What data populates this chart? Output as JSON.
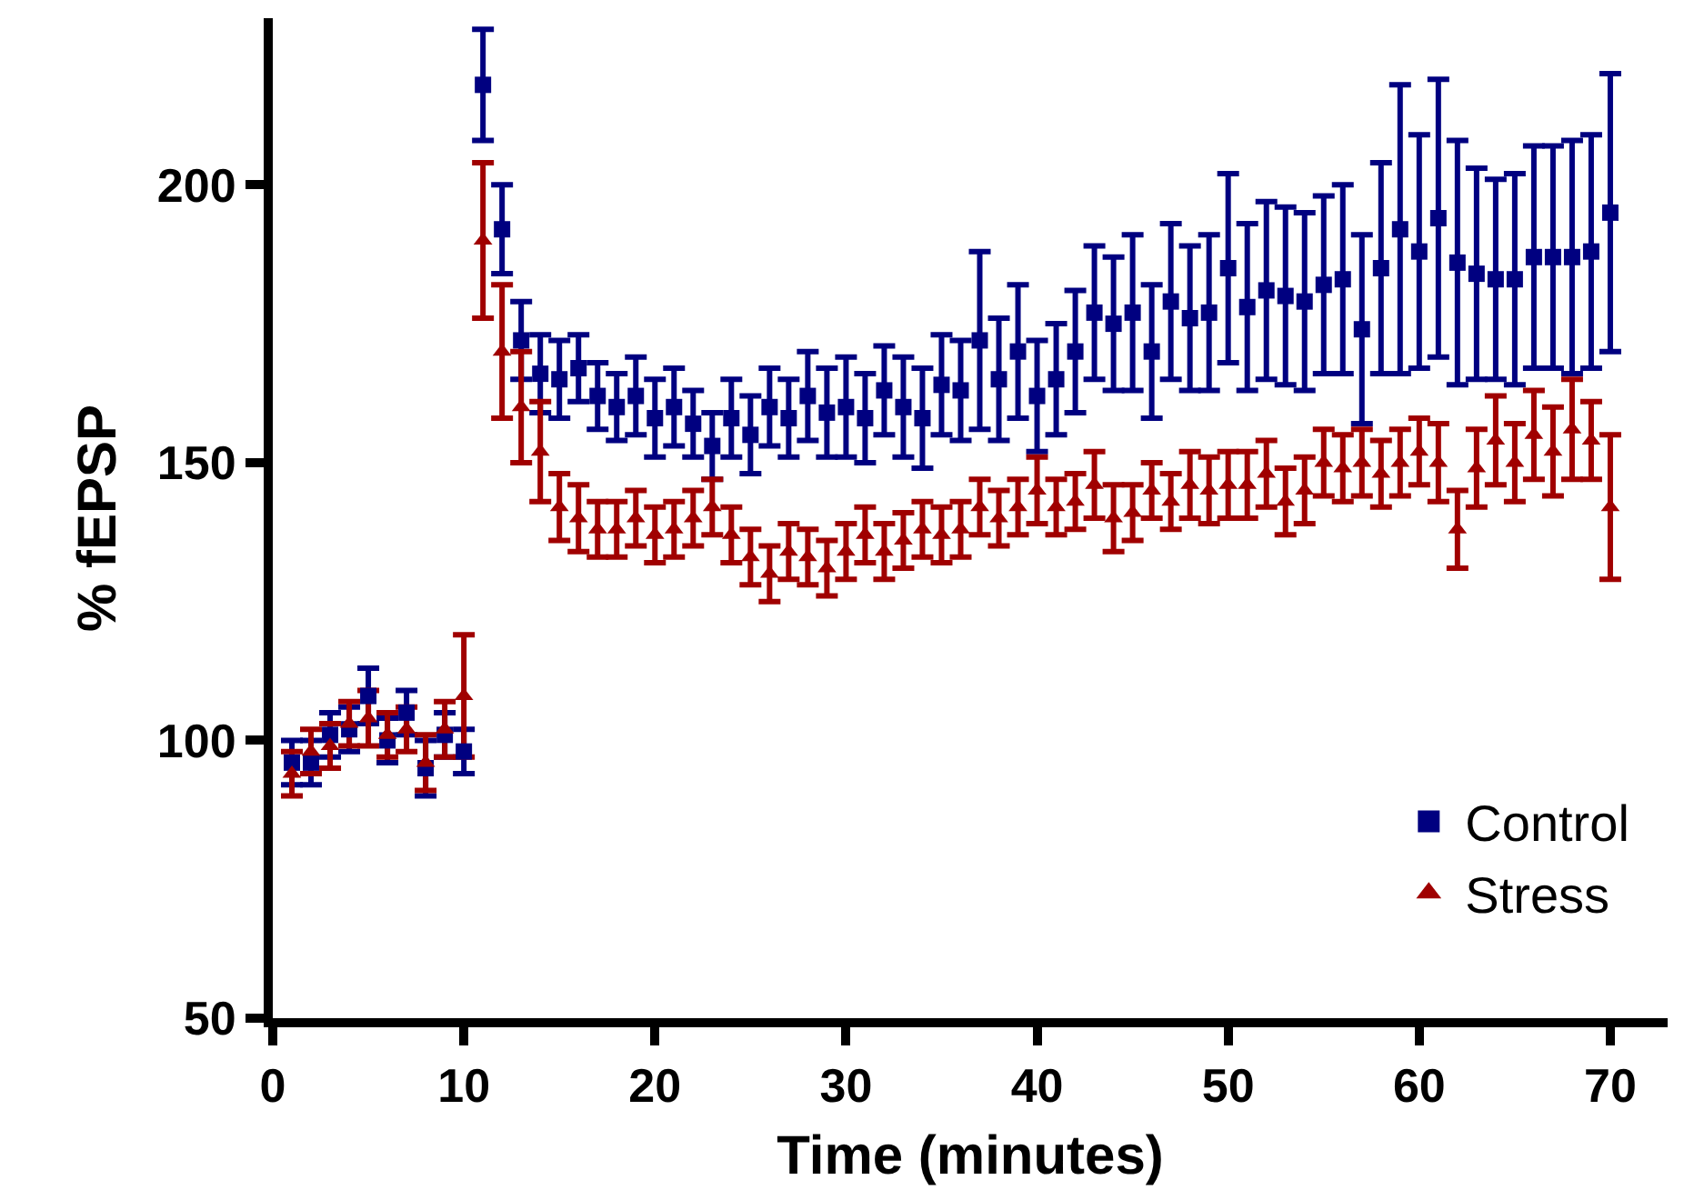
{
  "chart_data": {
    "type": "scatter",
    "xlabel": "Time (minutes)",
    "ylabel": "% fEPSP",
    "x": [
      1,
      2,
      3,
      4,
      5,
      6,
      7,
      8,
      9,
      10,
      11,
      12,
      13,
      14,
      15,
      16,
      17,
      18,
      19,
      20,
      21,
      22,
      23,
      24,
      25,
      26,
      27,
      28,
      29,
      30,
      31,
      32,
      33,
      34,
      35,
      36,
      37,
      38,
      39,
      40,
      41,
      42,
      43,
      44,
      45,
      46,
      47,
      48,
      49,
      50,
      51,
      52,
      53,
      54,
      55,
      56,
      57,
      58,
      59,
      60,
      61,
      62,
      63,
      64,
      65,
      66,
      67,
      68,
      69,
      70
    ],
    "series": [
      {
        "name": "Control",
        "color": "#000080",
        "marker": "square",
        "values": [
          96,
          96,
          101,
          102,
          108,
          100,
          105,
          95,
          101,
          98,
          218,
          192,
          172,
          166,
          165,
          167,
          162,
          160,
          162,
          158,
          160,
          157,
          153,
          158,
          155,
          160,
          158,
          162,
          159,
          160,
          158,
          163,
          160,
          158,
          164,
          163,
          172,
          165,
          170,
          162,
          165,
          170,
          177,
          175,
          177,
          170,
          179,
          176,
          177,
          185,
          178,
          181,
          180,
          179,
          182,
          183,
          174,
          185,
          192,
          188,
          194,
          186,
          184,
          183,
          183,
          187,
          187,
          187,
          188,
          195
        ],
        "errors": [
          4,
          4,
          4,
          4,
          5,
          4,
          4,
          5,
          4,
          4,
          10,
          8,
          7,
          7,
          7,
          6,
          6,
          6,
          7,
          7,
          7,
          6,
          6,
          7,
          7,
          7,
          7,
          8,
          8,
          9,
          8,
          8,
          9,
          9,
          9,
          9,
          16,
          11,
          12,
          10,
          10,
          11,
          12,
          12,
          14,
          12,
          14,
          13,
          14,
          17,
          15,
          16,
          16,
          16,
          16,
          17,
          17,
          19,
          26,
          21,
          25,
          22,
          19,
          18,
          19,
          20,
          20,
          21,
          21,
          25
        ]
      },
      {
        "name": "Stress",
        "color": "#a00000",
        "marker": "triangle",
        "values": [
          94,
          98,
          99,
          103,
          104,
          101,
          102,
          96,
          102,
          108,
          190,
          170,
          160,
          152,
          142,
          140,
          138,
          138,
          140,
          137,
          138,
          140,
          142,
          137,
          133,
          130,
          134,
          133,
          131,
          134,
          137,
          134,
          136,
          138,
          137,
          138,
          142,
          140,
          142,
          145,
          142,
          143,
          146,
          140,
          141,
          145,
          143,
          146,
          145,
          146,
          146,
          148,
          143,
          145,
          150,
          149,
          150,
          148,
          150,
          152,
          150,
          138,
          149,
          154,
          150,
          155,
          152,
          156,
          154,
          142
        ],
        "errors": [
          4,
          4,
          4,
          4,
          5,
          4,
          4,
          5,
          5,
          11,
          14,
          12,
          10,
          9,
          6,
          6,
          5,
          5,
          5,
          5,
          5,
          5,
          5,
          5,
          5,
          5,
          5,
          5,
          5,
          5,
          5,
          5,
          5,
          5,
          5,
          5,
          5,
          5,
          5,
          6,
          5,
          5,
          6,
          6,
          5,
          5,
          5,
          6,
          6,
          6,
          6,
          6,
          6,
          6,
          6,
          6,
          6,
          6,
          6,
          6,
          7,
          7,
          7,
          8,
          7,
          8,
          8,
          9,
          7,
          13
        ]
      }
    ],
    "xlim": [
      0,
      73
    ],
    "xticks": [
      0,
      10,
      20,
      30,
      40,
      50,
      60,
      70
    ],
    "ylim": [
      50,
      230
    ],
    "yticks": [
      50,
      100,
      150,
      200
    ],
    "legend": "bottom right"
  }
}
